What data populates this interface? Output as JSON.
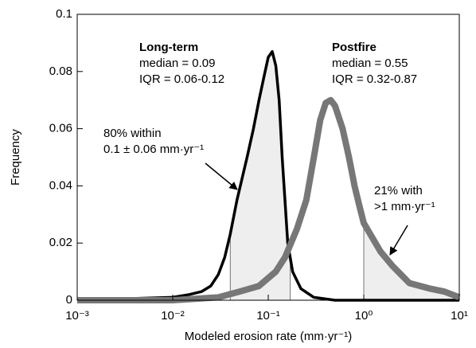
{
  "chart_data": {
    "type": "line",
    "xlabel": "Modeled erosion rate (mm·yr⁻¹)",
    "ylabel": "Frequency",
    "xscale": "log",
    "xlim": [
      0.001,
      10
    ],
    "ylim": [
      0,
      0.1
    ],
    "xticks": [
      {
        "value": 0.001,
        "label": "10⁻³"
      },
      {
        "value": 0.01,
        "label": "10⁻²"
      },
      {
        "value": 0.1,
        "label": "10⁻¹"
      },
      {
        "value": 1,
        "label": "10⁰"
      },
      {
        "value": 10,
        "label": "10¹"
      }
    ],
    "yticks": [
      0,
      0.02,
      0.04,
      0.06,
      0.08,
      0.1
    ],
    "series": [
      {
        "name": "Long-term",
        "color": "#000000",
        "width": 3.5,
        "x": [
          0.001,
          0.003,
          0.01,
          0.015,
          0.02,
          0.025,
          0.03,
          0.035,
          0.04,
          0.047,
          0.06,
          0.07,
          0.08,
          0.09,
          0.1,
          0.11,
          0.12,
          0.13,
          0.14,
          0.16,
          0.18,
          0.22,
          0.3,
          0.5,
          1,
          10
        ],
        "values": [
          0,
          0.0005,
          0.001,
          0.002,
          0.003,
          0.005,
          0.009,
          0.015,
          0.023,
          0.035,
          0.05,
          0.06,
          0.07,
          0.078,
          0.085,
          0.087,
          0.082,
          0.07,
          0.05,
          0.02,
          0.01,
          0.004,
          0.001,
          0,
          0,
          0
        ],
        "shade": [
          0.04,
          0.17
        ]
      },
      {
        "name": "Postfire",
        "color": "#777777",
        "width": 8,
        "x": [
          0.001,
          0.01,
          0.03,
          0.05,
          0.08,
          0.12,
          0.15,
          0.2,
          0.25,
          0.3,
          0.35,
          0.4,
          0.45,
          0.5,
          0.6,
          0.7,
          0.8,
          0.9,
          1,
          1.5,
          2,
          3,
          5,
          7,
          10
        ],
        "values": [
          0,
          0,
          0.001,
          0.003,
          0.005,
          0.01,
          0.015,
          0.025,
          0.035,
          0.05,
          0.063,
          0.069,
          0.07,
          0.068,
          0.06,
          0.05,
          0.04,
          0.033,
          0.027,
          0.017,
          0.012,
          0.006,
          0.004,
          0.003,
          0.001
        ],
        "shade": [
          1,
          10
        ]
      }
    ],
    "annotations": [
      [
        "Long-term",
        "median = 0.09",
        "IQR = 0.06-0.12"
      ],
      [
        "Postfire",
        "median = 0.55",
        "IQR = 0.32-0.87"
      ],
      [
        "80% within",
        "0.1 ± 0.06 mm·yr⁻¹"
      ],
      [
        "21% with",
        ">1 mm·yr⁻¹"
      ]
    ]
  }
}
